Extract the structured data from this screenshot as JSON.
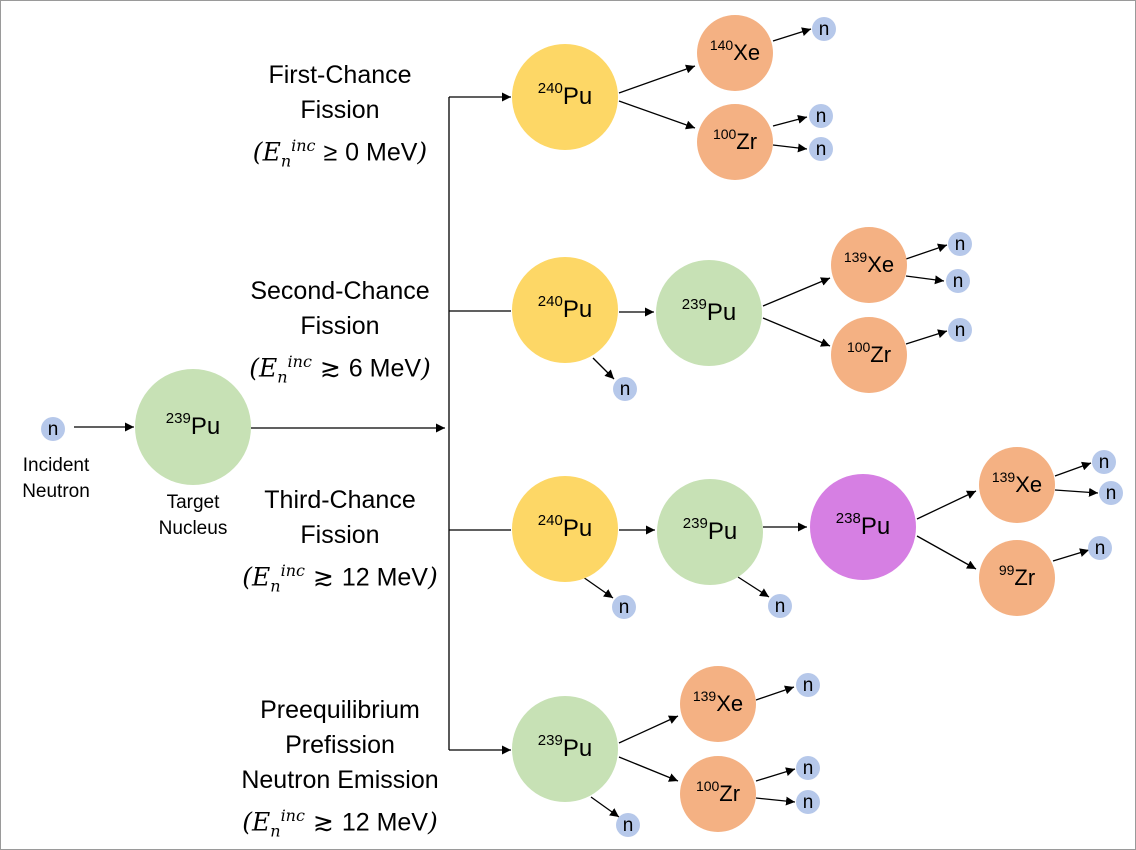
{
  "colors": {
    "pu240": "#fdd766",
    "pu239": "#c7e1b5",
    "pu238": "#d67fe3",
    "fragment": "#f4b183",
    "neutron": "#b6c8ea"
  },
  "incident": {
    "particle": "n",
    "caption_line1": "Incident",
    "caption_line2": "Neutron"
  },
  "target": {
    "mass": "239",
    "symbol": "Pu",
    "caption_line1": "Target",
    "caption_line2": "Nucleus"
  },
  "neutron_symbol": "n",
  "branches": [
    {
      "title_line1": "First-Chance",
      "title_line2": "Fission",
      "cond_var": "E",
      "cond_sub": "n",
      "cond_sup": "inc",
      "cond_rel": "≥",
      "cond_value": "0 MeV"
    },
    {
      "title_line1": "Second-Chance",
      "title_line2": "Fission",
      "cond_var": "E",
      "cond_sub": "n",
      "cond_sup": "inc",
      "cond_rel": "≳",
      "cond_value": "6 MeV"
    },
    {
      "title_line1": "Third-Chance",
      "title_line2": "Fission",
      "cond_var": "E",
      "cond_sub": "n",
      "cond_sup": "inc",
      "cond_rel": "≳",
      "cond_value": "12 MeV"
    },
    {
      "title_line1": "Preequilibrium",
      "title_line2": "Prefission",
      "title_line3": "Neutron Emission",
      "cond_var": "E",
      "cond_sub": "n",
      "cond_sup": "inc",
      "cond_rel": "≳",
      "cond_value": "12 MeV"
    }
  ],
  "nuclei": {
    "b1_pu240": {
      "mass": "240",
      "symbol": "Pu"
    },
    "b1_xe140": {
      "mass": "140",
      "symbol": "Xe"
    },
    "b1_zr100": {
      "mass": "100",
      "symbol": "Zr"
    },
    "b2_pu240": {
      "mass": "240",
      "symbol": "Pu"
    },
    "b2_pu239": {
      "mass": "239",
      "symbol": "Pu"
    },
    "b2_xe139": {
      "mass": "139",
      "symbol": "Xe"
    },
    "b2_zr100": {
      "mass": "100",
      "symbol": "Zr"
    },
    "b3_pu240": {
      "mass": "240",
      "symbol": "Pu"
    },
    "b3_pu239": {
      "mass": "239",
      "symbol": "Pu"
    },
    "b3_pu238": {
      "mass": "238",
      "symbol": "Pu"
    },
    "b3_xe139": {
      "mass": "139",
      "symbol": "Xe"
    },
    "b3_zr99": {
      "mass": "99",
      "symbol": "Zr"
    },
    "b4_pu239": {
      "mass": "239",
      "symbol": "Pu"
    },
    "b4_xe139": {
      "mass": "139",
      "symbol": "Xe"
    },
    "b4_zr100": {
      "mass": "100",
      "symbol": "Zr"
    }
  }
}
